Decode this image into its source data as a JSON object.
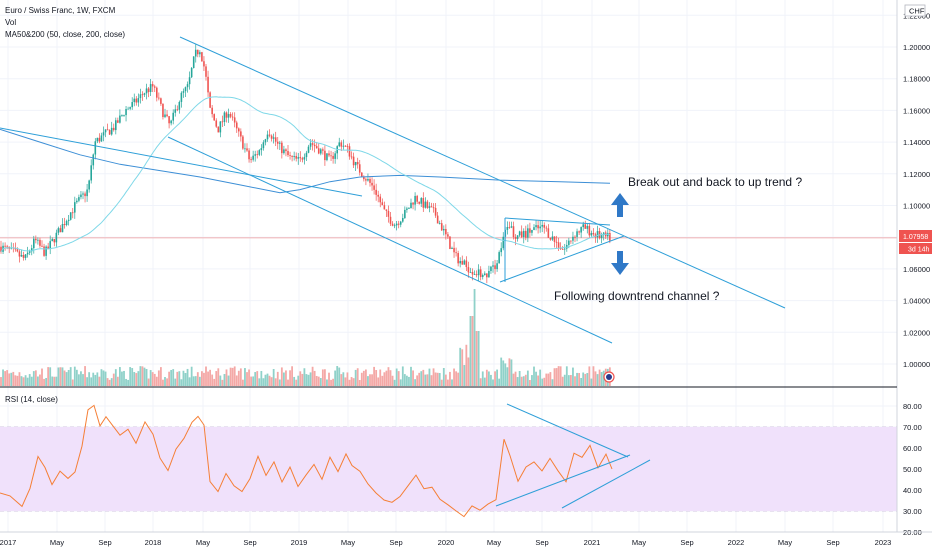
{
  "header": {
    "symbol": "Euro / Swiss Franc, 1W, FXCM",
    "vol_label": "Vol",
    "ma_label": "MA50&200 (50, close, 200, close)",
    "rsi_label": "RSI (14, close)",
    "currency_badge": "CHF"
  },
  "price_axis": {
    "ticks": [
      "1.22000",
      "1.20000",
      "1.18000",
      "1.16000",
      "1.14000",
      "1.12000",
      "1.10000",
      "1.08000",
      "1.06000",
      "1.04000",
      "1.02000",
      "1.00000"
    ],
    "last_price": "1.07958",
    "countdown": "3d 14h"
  },
  "rsi_axis": {
    "ticks": [
      "80.00",
      "70.00",
      "60.00",
      "50.00",
      "40.00",
      "30.00",
      "20.00"
    ]
  },
  "time_axis": {
    "labels": [
      "2017",
      "May",
      "Sep",
      "2018",
      "May",
      "Sep",
      "2019",
      "May",
      "Sep",
      "2020",
      "May",
      "Sep",
      "2021",
      "May",
      "Sep",
      "2022",
      "May",
      "Sep",
      "2023"
    ]
  },
  "annotations": {
    "up": "Break out and back to up trend ?",
    "down": "Following downtrend channel ?"
  },
  "colors": {
    "up": "#26a69a",
    "down": "#ef5350",
    "trendline": "#2e9fd8",
    "ma50": "#7fd8e8",
    "ma200": "#3d8fd6",
    "rsi": "#f57f36",
    "rsi_band": "#f0e1fb",
    "arrow": "#2f78c7",
    "price_badge": "#ef5350"
  },
  "chart_data": [
    {
      "type": "candlestick",
      "title": "Euro / Swiss Franc, 1W, FXCM",
      "series": [
        {
          "name": "MA50&200 (50, close, 200, close)",
          "values": []
        }
      ],
      "ylim": [
        0.99,
        1.225
      ],
      "last_price": 1.07958,
      "key_points": [
        {
          "x": "2017-01",
          "close": 1.072
        },
        {
          "x": "2017-09",
          "close": 1.145
        },
        {
          "x": "2018-01",
          "close": 1.175
        },
        {
          "x": "2018-04",
          "close": 1.2
        },
        {
          "x": "2018-06",
          "close": 1.155
        },
        {
          "x": "2018-09",
          "close": 1.13
        },
        {
          "x": "2019-01",
          "close": 1.128
        },
        {
          "x": "2019-04",
          "close": 1.14
        },
        {
          "x": "2019-08",
          "close": 1.085
        },
        {
          "x": "2019-12",
          "close": 1.085
        },
        {
          "x": "2020-04",
          "close": 1.055
        },
        {
          "x": "2020-05",
          "close": 1.08
        },
        {
          "x": "2020-09",
          "close": 1.08
        },
        {
          "x": "2021-01",
          "close": 1.08
        },
        {
          "x": "2021-03",
          "close": 1.08
        }
      ]
    },
    {
      "type": "bar",
      "title": "Vol",
      "note": "weekly volume histogram, spike in March 2020"
    },
    {
      "type": "line",
      "title": "RSI (14, close)",
      "ylim": [
        20,
        85
      ],
      "band": [
        30,
        70
      ],
      "key_points": [
        {
          "x": "2017-01",
          "y": 38
        },
        {
          "x": "2017-09",
          "y": 80
        },
        {
          "x": "2018-04",
          "y": 75
        },
        {
          "x": "2018-06",
          "y": 45
        },
        {
          "x": "2019-04",
          "y": 55
        },
        {
          "x": "2019-09",
          "y": 32
        },
        {
          "x": "2020-04",
          "y": 28
        },
        {
          "x": "2020-06",
          "y": 63
        },
        {
          "x": "2020-10",
          "y": 48
        },
        {
          "x": "2021-01",
          "y": 60
        },
        {
          "x": "2021-03",
          "y": 53
        }
      ]
    }
  ]
}
